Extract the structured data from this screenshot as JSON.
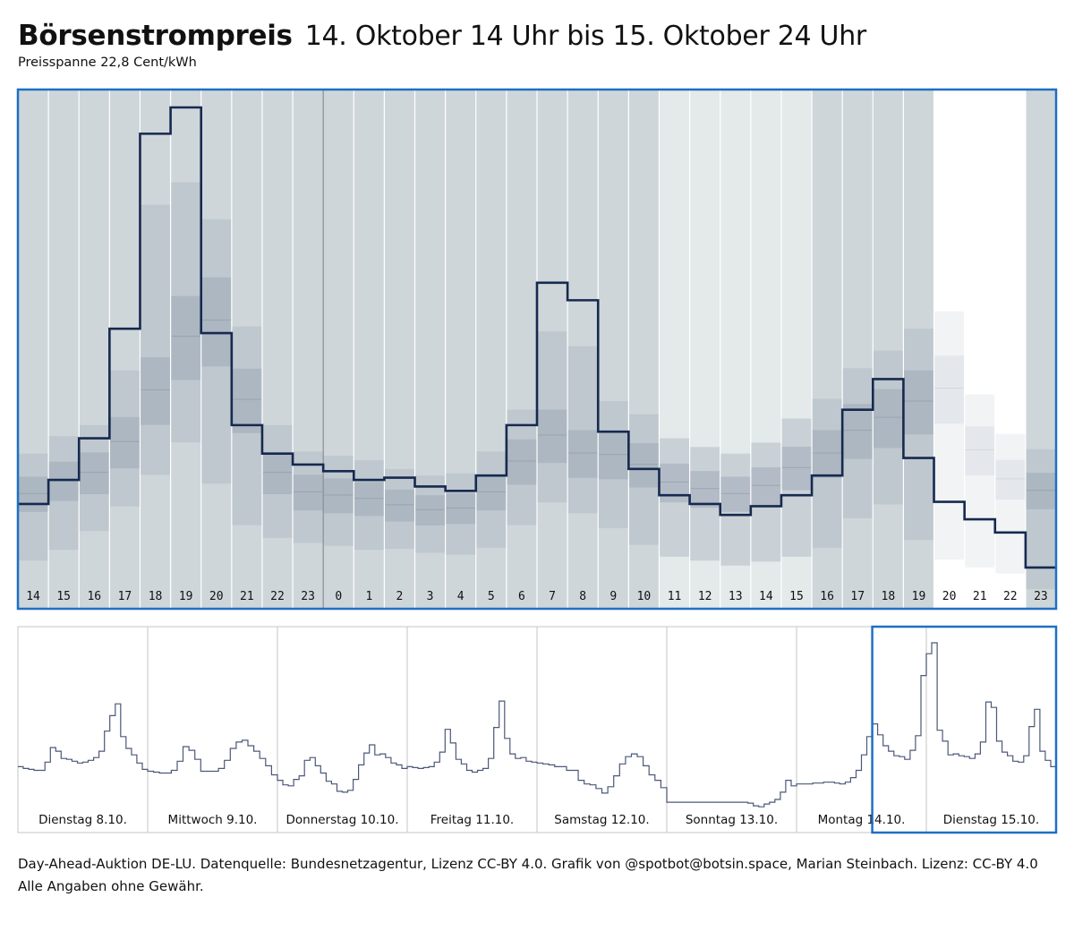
{
  "header": {
    "title": "Börsenstrompreis",
    "title_range": "14. Oktober 14 Uhr bis 15. Oktober 24 Uhr",
    "subtitle": "Preisspanne 22,8 Cent/kWh"
  },
  "footer": {
    "line1": "Day-Ahead-Auktion DE-LU. Datenquelle: Bundesnetzagentur, Lizenz CC-BY 4.0. Grafik von @spotbot@botsin.space, Marian Steinbach. Lizenz: CC-BY 4.0",
    "line2": "Alle Angaben ohne Gewähr."
  },
  "colors": {
    "frame": "#1f6fc5",
    "price_line": "#16294f",
    "column_bg_dark": "#cfd6da",
    "column_bg_light": "#e4e9ea",
    "band_outer": "#b2bdc7",
    "band_inner": "#8f9dac",
    "overview_line": "#4b5878"
  },
  "chart_data": [
    {
      "type": "line",
      "title": "Börsenstrompreis",
      "subtitle": "Preisspanne 22,8 Cent/kWh",
      "x_tick_labels": [
        "14",
        "15",
        "16",
        "17",
        "18",
        "19",
        "20",
        "21",
        "22",
        "23",
        "0",
        "1",
        "2",
        "3",
        "4",
        "5",
        "6",
        "7",
        "8",
        "9",
        "10",
        "11",
        "12",
        "13",
        "14",
        "15",
        "16",
        "17",
        "18",
        "19",
        "20",
        "21",
        "22",
        "23"
      ],
      "ylim": [
        0,
        22.8
      ],
      "unit": "Cent/kWh",
      "series": [
        {
          "style": "step",
          "values": [
            4.7,
            5.8,
            7.7,
            12.7,
            21.6,
            22.8,
            12.5,
            8.3,
            7.0,
            6.5,
            6.2,
            5.8,
            5.9,
            5.5,
            5.3,
            6.0,
            8.3,
            14.8,
            14.0,
            8.0,
            6.3,
            5.1,
            4.7,
            4.2,
            4.6,
            5.1,
            6.0,
            9.0,
            10.4,
            6.8,
            4.8,
            4.0,
            3.4,
            1.8
          ]
        }
      ],
      "column_background_levels": [
        7.0,
        7.8,
        8.3,
        10.2,
        13.4,
        16.7,
        17.7,
        12.8,
        8.3,
        7.1,
        6.9,
        6.7,
        6.3,
        6.0,
        6.1,
        7.1,
        9.0,
        10.6,
        9.5,
        9.4,
        8.8,
        7.7,
        7.3,
        7.0,
        7.5,
        8.6,
        9.5,
        10.9,
        11.7,
        12.7,
        13.5,
        9.7,
        7.9,
        7.2
      ],
      "column_shading": [
        "dark",
        "dark",
        "dark",
        "dark",
        "dark",
        "dark",
        "dark",
        "dark",
        "dark",
        "dark",
        "dark",
        "dark",
        "dark",
        "dark",
        "dark",
        "dark",
        "dark",
        "dark",
        "dark",
        "dark",
        "dark",
        "light",
        "light",
        "light",
        "light",
        "light",
        "dark",
        "dark",
        "dark",
        "dark",
        "none",
        "none",
        "none",
        "dark"
      ],
      "grid": true,
      "legend": "none"
    },
    {
      "type": "line",
      "style": "step",
      "categories": [
        "Dienstag 8.10.",
        "Mittwoch 9.10.",
        "Donnerstag 10.10.",
        "Freitag 11.10.",
        "Samstag 12.10.",
        "Sonntag 13.10.",
        "Montag 14.10.",
        "Dienstag 15.10."
      ],
      "values": [
        [
          9.2,
          9.0,
          8.9,
          8.8,
          8.8,
          9.7,
          11.3,
          10.9,
          10.1,
          10.0,
          9.8,
          9.6,
          9.7,
          9.9,
          10.2,
          10.9,
          13.1,
          14.8,
          16.1,
          12.5,
          11.2,
          10.5,
          9.6,
          8.9
        ],
        [
          8.7,
          8.6,
          8.5,
          8.5,
          8.8,
          9.8,
          11.4,
          11.0,
          10.0,
          8.7,
          8.7,
          8.7,
          9.0,
          9.9,
          11.2,
          11.9,
          12.1,
          11.5,
          10.9,
          10.1,
          9.3,
          8.3
        ],
        [
          7.7,
          7.2,
          7.1,
          7.8,
          8.2,
          9.9,
          10.2,
          9.3,
          8.5,
          7.6,
          7.3,
          6.5,
          6.4,
          6.6,
          7.8,
          9.4,
          10.7,
          11.6,
          10.5,
          10.6,
          10.2,
          9.6,
          9.4,
          9.0
        ],
        [
          9.2,
          9.1,
          9.0,
          9.1,
          9.2,
          9.7,
          10.8,
          13.3,
          11.8,
          10.0,
          9.5,
          8.8,
          8.6,
          8.8,
          9.0,
          10.1,
          13.5,
          16.4,
          12.3,
          10.6,
          10.1,
          10.2,
          9.8,
          9.7
        ],
        [
          9.6,
          9.5,
          9.4,
          9.2,
          9.2,
          8.8,
          8.8,
          7.7,
          7.3,
          7.2,
          6.8,
          6.3,
          7.0,
          8.2,
          9.5,
          10.3,
          10.6,
          10.3,
          9.3,
          8.3,
          7.7,
          6.9
        ],
        [
          5.3,
          5.3,
          5.3,
          5.3,
          5.3,
          5.3,
          5.3,
          5.3,
          5.3,
          5.3,
          5.3,
          5.3,
          5.3,
          5.3,
          5.3,
          5.2,
          4.9,
          4.8,
          5.1,
          5.3,
          5.6,
          6.4,
          7.7,
          7.1
        ],
        [
          7.3,
          7.3,
          7.3,
          7.4,
          7.4,
          7.5,
          7.5,
          7.4,
          7.3,
          7.5,
          8.0,
          8.8,
          10.5,
          12.5,
          13.9,
          12.7,
          11.5,
          10.9,
          10.4,
          10.3,
          10.0,
          11.0,
          12.6,
          19.2
        ],
        [
          21.6,
          22.8,
          13.2,
          12.0,
          10.5,
          10.6,
          10.4,
          10.3,
          10.1,
          10.6,
          11.9,
          16.3,
          15.7,
          12.0,
          10.8,
          10.4,
          9.8,
          9.7,
          10.4,
          13.6,
          15.5,
          10.9,
          9.9,
          9.2
        ]
      ],
      "highlight_range": [
        "Montag 14.10.",
        "Dienstag 15.10."
      ],
      "grid": true,
      "legend": "none"
    }
  ]
}
